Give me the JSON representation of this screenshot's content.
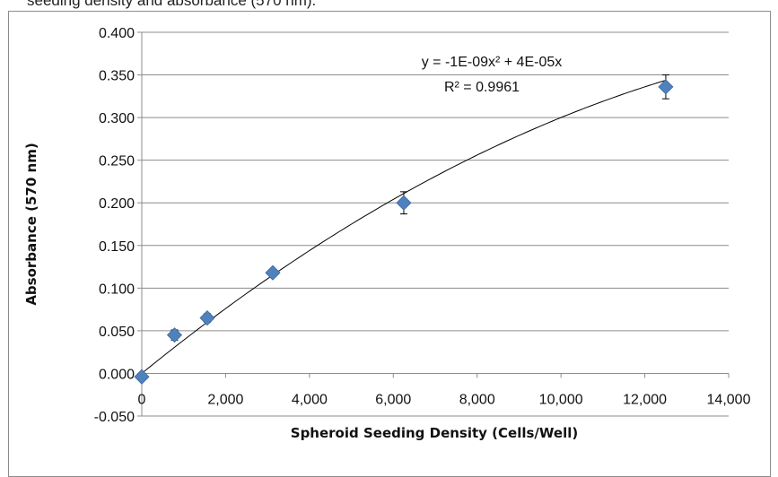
{
  "caption": "seeding density and absorbance (570 nm).",
  "chart_data": {
    "type": "scatter",
    "xlabel": "Spheroid Seeding Density (Cells/Well)",
    "ylabel": "Absorbance (570 nm)",
    "xlim": [
      0,
      14000
    ],
    "ylim": [
      -0.05,
      0.4
    ],
    "xticks": [
      0,
      2000,
      4000,
      6000,
      8000,
      10000,
      12000,
      14000
    ],
    "xtick_labels": [
      "0",
      "2,000",
      "4,000",
      "6,000",
      "8,000",
      "10,000",
      "12,000",
      "14,000"
    ],
    "yticks": [
      -0.05,
      0.0,
      0.05,
      0.1,
      0.15,
      0.2,
      0.25,
      0.3,
      0.35,
      0.4
    ],
    "ytick_labels": [
      "-0.050",
      "0.000",
      "0.050",
      "0.100",
      "0.150",
      "0.200",
      "0.250",
      "0.300",
      "0.350",
      "0.400"
    ],
    "grid": "horizontal",
    "legend": "none",
    "series": [
      {
        "x": [
          0,
          781,
          1563,
          3125,
          6250,
          12500
        ],
        "y": [
          -0.004,
          0.045,
          0.065,
          0.118,
          0.2,
          0.336
        ],
        "error": [
          0.003,
          0.006,
          0.005,
          0.004,
          0.013,
          0.014
        ],
        "color": "#4f81bd",
        "marker": "diamond"
      }
    ],
    "trendline": {
      "type": "polynomial",
      "a": -1e-09,
      "b": 4e-05,
      "c": 0,
      "color": "#000000",
      "equation_label": "y = -1E-09x² + 4E-05x",
      "r2_label": "R² = 0.9961"
    }
  }
}
